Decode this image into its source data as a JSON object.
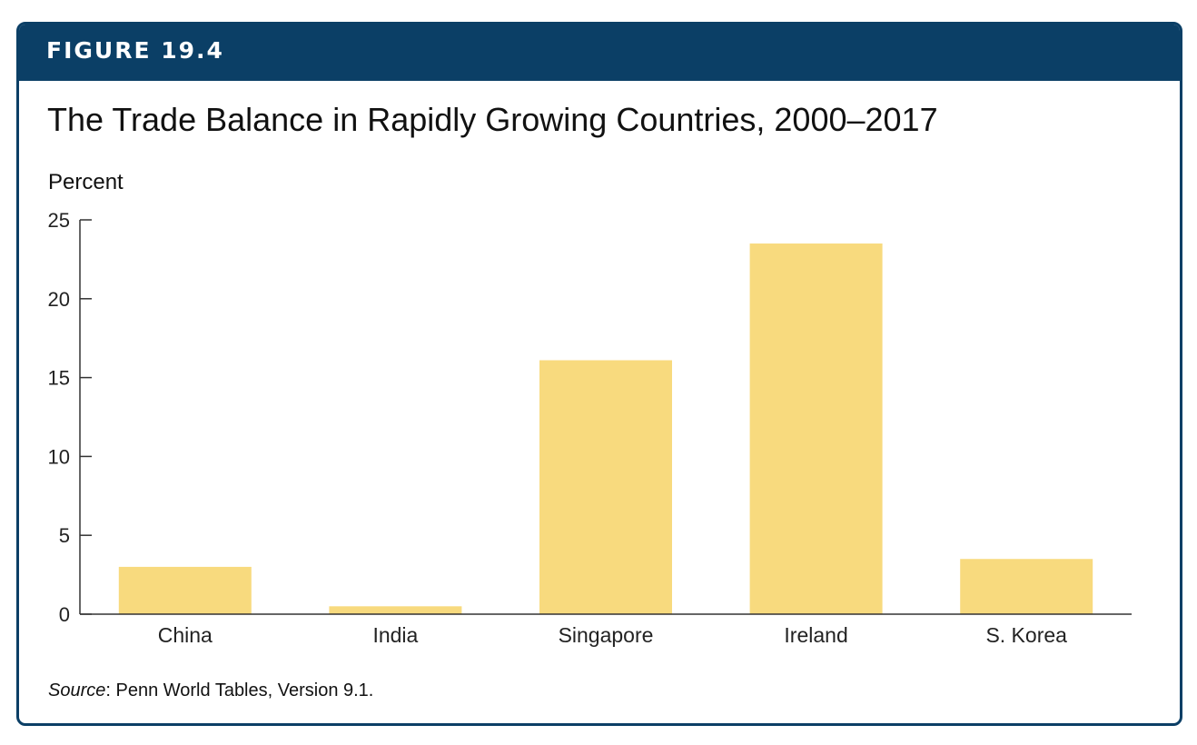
{
  "figure": {
    "label": "FIGURE 19.4",
    "title": "The Trade Balance in Rapidly Growing Countries, 2000–2017",
    "source_prefix": "Source",
    "source_text": ": Penn World Tables, Version 9.1."
  },
  "colors": {
    "header": "#0b3f66",
    "bar": "#f8da7e",
    "axis": "#333333"
  },
  "chart_data": {
    "type": "bar",
    "ylabel": "Percent",
    "xlabel": "",
    "categories": [
      "China",
      "India",
      "Singapore",
      "Ireland",
      "S. Korea"
    ],
    "values": [
      3.0,
      0.5,
      16.1,
      23.5,
      3.5
    ],
    "ylim": [
      0,
      25
    ],
    "yticks": [
      0,
      5,
      10,
      15,
      20,
      25
    ],
    "grid": false
  }
}
